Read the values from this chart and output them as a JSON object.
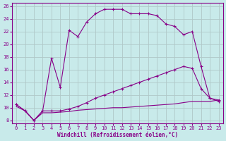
{
  "xlabel": "Windchill (Refroidissement éolien,°C)",
  "background_color": "#c8eaea",
  "grid_color": "#b0c8c8",
  "line_color": "#880088",
  "xlim": [
    -0.5,
    23.5
  ],
  "ylim": [
    7.5,
    26.5
  ],
  "yticks": [
    8,
    10,
    12,
    14,
    16,
    18,
    20,
    22,
    24,
    26
  ],
  "xticks": [
    0,
    1,
    2,
    3,
    4,
    5,
    6,
    7,
    8,
    9,
    10,
    11,
    12,
    13,
    14,
    15,
    16,
    17,
    18,
    19,
    20,
    21,
    22,
    23
  ],
  "curve1_x": [
    0,
    1,
    2,
    3,
    4,
    5,
    6,
    7,
    8,
    9,
    10,
    11,
    12,
    13,
    14,
    15,
    16,
    17,
    18,
    19,
    20,
    21,
    22,
    23
  ],
  "curve1_y": [
    10.5,
    9.5,
    8.0,
    9.5,
    17.8,
    13.2,
    22.2,
    21.2,
    23.5,
    24.8,
    25.5,
    25.5,
    25.5,
    24.8,
    24.8,
    24.8,
    24.5,
    23.2,
    22.8,
    21.5,
    22.0,
    16.5,
    11.5,
    11.0
  ],
  "curve2_x": [
    0,
    1,
    2,
    3,
    4,
    5,
    6,
    7,
    8,
    9,
    10,
    11,
    12,
    13,
    14,
    15,
    16,
    17,
    18,
    19,
    20,
    21,
    22,
    23
  ],
  "curve2_y": [
    10.5,
    9.5,
    8.0,
    9.5,
    9.5,
    9.5,
    9.8,
    10.2,
    10.8,
    11.5,
    12.0,
    12.5,
    13.0,
    13.5,
    14.0,
    14.5,
    15.0,
    15.5,
    16.0,
    16.5,
    16.2,
    13.0,
    11.5,
    11.2
  ],
  "curve3_x": [
    0,
    1,
    2,
    3,
    4,
    5,
    6,
    7,
    8,
    9,
    10,
    11,
    12,
    13,
    14,
    15,
    16,
    17,
    18,
    19,
    20,
    21,
    22,
    23
  ],
  "curve3_y": [
    10.2,
    9.5,
    8.0,
    9.2,
    9.2,
    9.3,
    9.4,
    9.6,
    9.7,
    9.8,
    9.9,
    10.0,
    10.0,
    10.1,
    10.2,
    10.3,
    10.4,
    10.5,
    10.6,
    10.8,
    11.0,
    11.0,
    11.0,
    11.2
  ]
}
